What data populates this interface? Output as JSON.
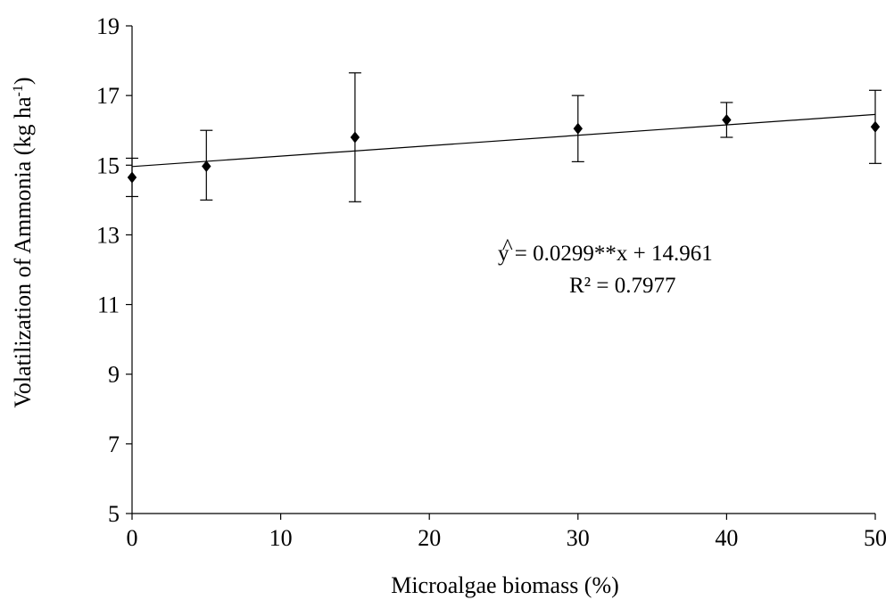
{
  "chart_data": {
    "type": "scatter",
    "xlabel": "Microalgae biomass (%)",
    "ylabel": {
      "main": "Volatilization of Ammonia (kg ha",
      "superscript": "-1",
      "close": ")"
    },
    "xlim": [
      0,
      50
    ],
    "ylim": [
      5,
      19
    ],
    "x_ticks": [
      0,
      10,
      20,
      30,
      40,
      50
    ],
    "y_ticks": [
      5,
      7,
      9,
      11,
      13,
      15,
      17,
      19
    ],
    "grid": false,
    "legend": "none",
    "marker": "diamond",
    "marker_color": "#000000",
    "line_color": "#000000",
    "points": [
      {
        "x": 0,
        "y": 14.65,
        "err_low": 14.1,
        "err_high": 15.2
      },
      {
        "x": 5,
        "y": 14.97,
        "err_low": 14.0,
        "err_high": 16.0
      },
      {
        "x": 15,
        "y": 15.8,
        "err_low": 13.95,
        "err_high": 17.65
      },
      {
        "x": 30,
        "y": 16.05,
        "err_low": 15.1,
        "err_high": 17.0
      },
      {
        "x": 40,
        "y": 16.3,
        "err_low": 15.8,
        "err_high": 16.8
      },
      {
        "x": 50,
        "y": 16.1,
        "err_low": 15.05,
        "err_high": 17.15
      }
    ],
    "trendline": {
      "slope": 0.0299,
      "intercept": 14.961,
      "x_range": [
        0,
        50
      ]
    },
    "annotation": {
      "equation_hat": "^",
      "equation": "y = 0.0299**x + 14.961",
      "r2": "R² = 0.7977"
    }
  }
}
